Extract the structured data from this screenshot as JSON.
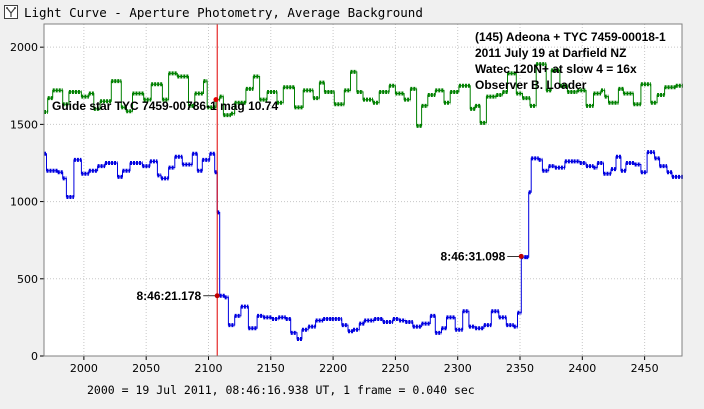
{
  "window": {
    "title": "Light Curve - Aperture Photometry, Average Background"
  },
  "footer": {
    "text": "2000 = 19 Jul 2011, 08:46:16.938 UT, 1 frame = 0.040 sec"
  },
  "colors": {
    "target": "#0000e0",
    "guide": "#008000",
    "marker_line": "#e00000",
    "grid": "#c8c8c8",
    "plot_bg": "#ffffff",
    "page_bg": "#f0f0f0"
  },
  "chart_data": {
    "type": "line",
    "xlim": [
      1968,
      2480
    ],
    "ylim": [
      0,
      2150
    ],
    "xticks": [
      2000,
      2050,
      2100,
      2150,
      2200,
      2250,
      2300,
      2350,
      2400,
      2450
    ],
    "yticks": [
      0,
      500,
      1000,
      1500,
      2000
    ],
    "grid": true,
    "info_lines": [
      "(145) Adeona + TYC 7459-00018-1",
      "2011 July 19  at Darfield NZ",
      "Watec 120N+ at slow 4 = 16x",
      "Observer  B. Loader"
    ],
    "guide_label": "Guide star TYC 7459-00786-1   mag 10.74",
    "marker_x": 2107,
    "series": [
      {
        "role": "guide",
        "color": "#008000",
        "steps": [
          [
            1968,
            1580
          ],
          [
            1971,
            1670
          ],
          [
            1975,
            1720
          ],
          [
            1983,
            1630
          ],
          [
            1988,
            1710
          ],
          [
            1998,
            1680
          ],
          [
            2004,
            1700
          ],
          [
            2008,
            1600
          ],
          [
            2013,
            1650
          ],
          [
            2022,
            1780
          ],
          [
            2030,
            1610
          ],
          [
            2034,
            1585
          ],
          [
            2039,
            1700
          ],
          [
            2048,
            1660
          ],
          [
            2054,
            1760
          ],
          [
            2063,
            1660
          ],
          [
            2068,
            1830
          ],
          [
            2075,
            1810
          ],
          [
            2084,
            1620
          ],
          [
            2089,
            1700
          ],
          [
            2096,
            1780
          ],
          [
            2099,
            1610
          ],
          [
            2106,
            1660
          ],
          [
            2109,
            1680
          ],
          [
            2112,
            1560
          ],
          [
            2118,
            1570
          ],
          [
            2121,
            1640
          ],
          [
            2130,
            1730
          ],
          [
            2136,
            1810
          ],
          [
            2141,
            1660
          ],
          [
            2147,
            1710
          ],
          [
            2155,
            1640
          ],
          [
            2160,
            1740
          ],
          [
            2169,
            1610
          ],
          [
            2176,
            1720
          ],
          [
            2184,
            1670
          ],
          [
            2189,
            1770
          ],
          [
            2193,
            1710
          ],
          [
            2201,
            1630
          ],
          [
            2209,
            1720
          ],
          [
            2214,
            1840
          ],
          [
            2219,
            1710
          ],
          [
            2224,
            1660
          ],
          [
            2232,
            1640
          ],
          [
            2237,
            1710
          ],
          [
            2245,
            1750
          ],
          [
            2250,
            1700
          ],
          [
            2257,
            1660
          ],
          [
            2262,
            1730
          ],
          [
            2267,
            1490
          ],
          [
            2271,
            1620
          ],
          [
            2276,
            1690
          ],
          [
            2282,
            1720
          ],
          [
            2289,
            1640
          ],
          [
            2294,
            1710
          ],
          [
            2301,
            1750
          ],
          [
            2310,
            1600
          ],
          [
            2314,
            1620
          ],
          [
            2318,
            1510
          ],
          [
            2323,
            1680
          ],
          [
            2331,
            1690
          ],
          [
            2336,
            1710
          ],
          [
            2340,
            1830
          ],
          [
            2347,
            1700
          ],
          [
            2352,
            1670
          ],
          [
            2358,
            1620
          ],
          [
            2363,
            1890
          ],
          [
            2371,
            1720
          ],
          [
            2375,
            1850
          ],
          [
            2382,
            1750
          ],
          [
            2388,
            1710
          ],
          [
            2396,
            1720
          ],
          [
            2403,
            1620
          ],
          [
            2409,
            1700
          ],
          [
            2415,
            1720
          ],
          [
            2418,
            1680
          ],
          [
            2421,
            1640
          ],
          [
            2429,
            1730
          ],
          [
            2433,
            1700
          ],
          [
            2441,
            1630
          ],
          [
            2447,
            1760
          ],
          [
            2455,
            1640
          ],
          [
            2460,
            1690
          ],
          [
            2466,
            1740
          ],
          [
            2475,
            1750
          ],
          [
            2480,
            1750
          ]
        ]
      },
      {
        "role": "target",
        "color": "#0000e0",
        "steps": [
          [
            1968,
            1310
          ],
          [
            1970,
            1200
          ],
          [
            1979,
            1190
          ],
          [
            1983,
            1150
          ],
          [
            1986,
            1030
          ],
          [
            1992,
            1270
          ],
          [
            1998,
            1180
          ],
          [
            2004,
            1200
          ],
          [
            2011,
            1230
          ],
          [
            2017,
            1250
          ],
          [
            2027,
            1160
          ],
          [
            2031,
            1200
          ],
          [
            2037,
            1250
          ],
          [
            2047,
            1230
          ],
          [
            2053,
            1260
          ],
          [
            2059,
            1170
          ],
          [
            2062,
            1150
          ],
          [
            2068,
            1220
          ],
          [
            2073,
            1290
          ],
          [
            2079,
            1240
          ],
          [
            2087,
            1310
          ],
          [
            2091,
            1200
          ],
          [
            2095,
            1270
          ],
          [
            2101,
            1310
          ],
          [
            2105,
            1190
          ],
          [
            2107,
            930
          ],
          [
            2109,
            390
          ],
          [
            2113,
            380
          ],
          [
            2116,
            200
          ],
          [
            2121,
            260
          ],
          [
            2126,
            320
          ],
          [
            2132,
            180
          ],
          [
            2139,
            260
          ],
          [
            2144,
            250
          ],
          [
            2151,
            240
          ],
          [
            2156,
            250
          ],
          [
            2162,
            240
          ],
          [
            2166,
            150
          ],
          [
            2171,
            110
          ],
          [
            2175,
            170
          ],
          [
            2180,
            190
          ],
          [
            2186,
            230
          ],
          [
            2192,
            240
          ],
          [
            2199,
            240
          ],
          [
            2207,
            200
          ],
          [
            2212,
            160
          ],
          [
            2216,
            170
          ],
          [
            2221,
            210
          ],
          [
            2225,
            230
          ],
          [
            2233,
            240
          ],
          [
            2240,
            220
          ],
          [
            2248,
            240
          ],
          [
            2253,
            230
          ],
          [
            2258,
            220
          ],
          [
            2264,
            190
          ],
          [
            2271,
            210
          ],
          [
            2278,
            260
          ],
          [
            2282,
            150
          ],
          [
            2287,
            180
          ],
          [
            2291,
            250
          ],
          [
            2298,
            170
          ],
          [
            2304,
            290
          ],
          [
            2309,
            190
          ],
          [
            2314,
            180
          ],
          [
            2321,
            200
          ],
          [
            2327,
            290
          ],
          [
            2333,
            250
          ],
          [
            2339,
            200
          ],
          [
            2345,
            190
          ],
          [
            2348,
            280
          ],
          [
            2351,
            640
          ],
          [
            2355,
            640
          ],
          [
            2357,
            1060
          ],
          [
            2359,
            1280
          ],
          [
            2365,
            1270
          ],
          [
            2368,
            1200
          ],
          [
            2373,
            1230
          ],
          [
            2378,
            1220
          ],
          [
            2386,
            1260
          ],
          [
            2393,
            1260
          ],
          [
            2398,
            1250
          ],
          [
            2403,
            1230
          ],
          [
            2409,
            1220
          ],
          [
            2412,
            1250
          ],
          [
            2417,
            1180
          ],
          [
            2423,
            1210
          ],
          [
            2427,
            1290
          ],
          [
            2431,
            1200
          ],
          [
            2435,
            1250
          ],
          [
            2442,
            1240
          ],
          [
            2447,
            1190
          ],
          [
            2452,
            1320
          ],
          [
            2458,
            1280
          ],
          [
            2462,
            1230
          ],
          [
            2468,
            1190
          ],
          [
            2472,
            1160
          ],
          [
            2480,
            1160
          ]
        ]
      }
    ],
    "annotations": [
      {
        "text": "8:46:21.178",
        "x": 2107,
        "y": 390,
        "color": "#c00000"
      },
      {
        "text": "8:46:31.098",
        "x": 2351,
        "y": 645,
        "color": "#c00000"
      }
    ]
  }
}
